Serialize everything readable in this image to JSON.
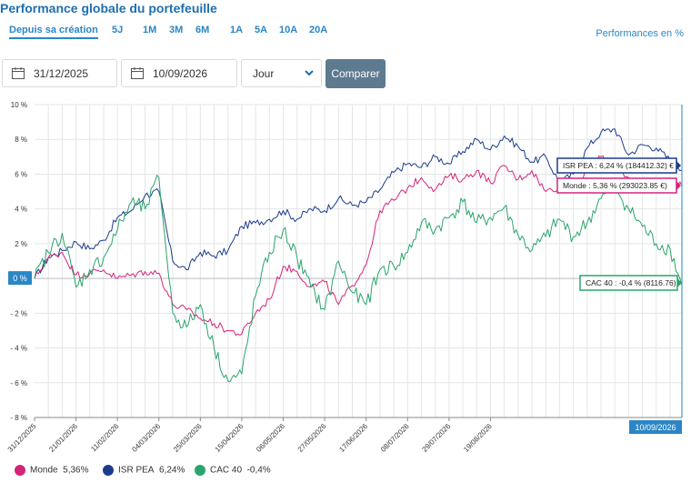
{
  "header": {
    "title": "Performance globale du portefeuille",
    "unit_label": "Performances en %"
  },
  "periods": [
    {
      "label": "Depuis sa création",
      "active": true
    },
    {
      "label": "5J",
      "active": false
    },
    {
      "label": "1M",
      "active": false
    },
    {
      "label": "3M",
      "active": false
    },
    {
      "label": "6M",
      "active": false
    },
    {
      "label": "1A",
      "active": false
    },
    {
      "label": "5A",
      "active": false
    },
    {
      "label": "10A",
      "active": false
    },
    {
      "label": "20A",
      "active": false
    }
  ],
  "controls": {
    "start_date": "31/12/2025",
    "end_date": "10/09/2026",
    "granularity": "Jour",
    "compare_label": "Comparer"
  },
  "colors": {
    "isr": "#1b3c8c",
    "monde": "#d6237a",
    "cac": "#2aa56b",
    "accent": "#2b86c5"
  },
  "chart_data": {
    "type": "line",
    "ylim": [
      -8,
      10
    ],
    "y_ticks": [
      10,
      8,
      6,
      4,
      2,
      0,
      -2,
      -4,
      -6,
      -8
    ],
    "y_tick_labels": [
      "10 %",
      "8 %",
      "6 %",
      "4 %",
      "2 %",
      "",
      "- 2 %",
      "- 4 %",
      "- 6 %",
      "- 8 %"
    ],
    "x_tick_labels": [
      "31/12/2025",
      "21/01/2026",
      "11/02/2026",
      "04/03/2026",
      "25/03/2026",
      "15/04/2026",
      "06/05/2026",
      "27/05/2026",
      "17/06/2026",
      "08/07/2026",
      "29/07/2026",
      "19/08/2026"
    ],
    "x_start": "31/12/2025",
    "x_end": "10/09/2026",
    "zero_label": "0 %",
    "cursor_date": "10/09/2026",
    "series": [
      {
        "name": "ISR PEA",
        "key": "isr",
        "legend_value": "6,24%",
        "tooltip": "ISR PEA : 6,24 % (184412.32) €",
        "points": [
          [
            0,
            0
          ],
          [
            7,
            1.2
          ],
          [
            14,
            1.6
          ],
          [
            21,
            2.1
          ],
          [
            28,
            1.7
          ],
          [
            35,
            2.2
          ],
          [
            42,
            3.5
          ],
          [
            49,
            3.9
          ],
          [
            56,
            4.8
          ],
          [
            63,
            5.0
          ],
          [
            70,
            1.0
          ],
          [
            77,
            0.5
          ],
          [
            84,
            1.5
          ],
          [
            91,
            1.3
          ],
          [
            98,
            1.6
          ],
          [
            105,
            3.0
          ],
          [
            112,
            3.2
          ],
          [
            119,
            3.4
          ],
          [
            126,
            3.9
          ],
          [
            133,
            3.4
          ],
          [
            140,
            4.0
          ],
          [
            147,
            3.9
          ],
          [
            154,
            4.6
          ],
          [
            161,
            4.2
          ],
          [
            168,
            4.4
          ],
          [
            175,
            5.1
          ],
          [
            182,
            6.1
          ],
          [
            189,
            6.6
          ],
          [
            196,
            6.4
          ],
          [
            203,
            7.0
          ],
          [
            210,
            6.6
          ],
          [
            217,
            7.3
          ],
          [
            224,
            8.0
          ],
          [
            231,
            7.4
          ],
          [
            238,
            8.2
          ],
          [
            245,
            7.6
          ],
          [
            252,
            6.7
          ],
          [
            259,
            7.0
          ],
          [
            266,
            5.5
          ],
          [
            273,
            6.0
          ],
          [
            280,
            7.5
          ],
          [
            287,
            8.4
          ],
          [
            294,
            8.6
          ],
          [
            301,
            7.1
          ],
          [
            308,
            7.7
          ],
          [
            315,
            7.5
          ],
          [
            322,
            6.8
          ],
          [
            328,
            6.24
          ]
        ]
      },
      {
        "name": "Monde",
        "key": "monde",
        "legend_value": "5,36%",
        "tooltip": "Monde : 5,36 % (293023.85 €)",
        "points": [
          [
            0,
            0
          ],
          [
            7,
            1.2
          ],
          [
            14,
            1.5
          ],
          [
            21,
            0.2
          ],
          [
            28,
            0.3
          ],
          [
            35,
            0.5
          ],
          [
            42,
            0.0
          ],
          [
            49,
            0.2
          ],
          [
            56,
            0.4
          ],
          [
            63,
            0.3
          ],
          [
            70,
            -1.5
          ],
          [
            77,
            -1.8
          ],
          [
            84,
            -2.3
          ],
          [
            91,
            -2.6
          ],
          [
            98,
            -3.0
          ],
          [
            105,
            -3.2
          ],
          [
            112,
            -2.0
          ],
          [
            119,
            -1.2
          ],
          [
            126,
            0.7
          ],
          [
            133,
            0.4
          ],
          [
            140,
            -0.5
          ],
          [
            147,
            -0.2
          ],
          [
            154,
            -1.5
          ],
          [
            161,
            -0.4
          ],
          [
            168,
            0.8
          ],
          [
            175,
            3.9
          ],
          [
            182,
            4.5
          ],
          [
            189,
            5.2
          ],
          [
            196,
            5.8
          ],
          [
            203,
            5.1
          ],
          [
            210,
            5.9
          ],
          [
            217,
            5.7
          ],
          [
            224,
            6.2
          ],
          [
            231,
            5.5
          ],
          [
            238,
            6.5
          ],
          [
            245,
            5.7
          ],
          [
            252,
            6.2
          ],
          [
            259,
            5.0
          ],
          [
            266,
            5.3
          ],
          [
            273,
            5.1
          ],
          [
            280,
            6.1
          ],
          [
            287,
            7.0
          ],
          [
            294,
            6.5
          ],
          [
            301,
            5.8
          ],
          [
            308,
            5.6
          ],
          [
            315,
            5.3
          ],
          [
            322,
            5.5
          ],
          [
            328,
            5.36
          ]
        ]
      },
      {
        "name": "CAC 40",
        "key": "cac",
        "legend_value": "-0,4%",
        "tooltip": "CAC 40 : -0,4 % (8116.76)",
        "points": [
          [
            0,
            0
          ],
          [
            7,
            1.5
          ],
          [
            14,
            2.6
          ],
          [
            21,
            -0.5
          ],
          [
            28,
            0.5
          ],
          [
            35,
            1.2
          ],
          [
            42,
            2.8
          ],
          [
            49,
            4.4
          ],
          [
            56,
            4.0
          ],
          [
            63,
            5.8
          ],
          [
            70,
            -2.0
          ],
          [
            77,
            -2.8
          ],
          [
            84,
            -1.5
          ],
          [
            91,
            -4.0
          ],
          [
            98,
            -5.9
          ],
          [
            105,
            -5.5
          ],
          [
            112,
            -1.0
          ],
          [
            119,
            1.5
          ],
          [
            126,
            2.8
          ],
          [
            133,
            1.2
          ],
          [
            140,
            -0.5
          ],
          [
            147,
            -1.8
          ],
          [
            154,
            1.0
          ],
          [
            161,
            -0.8
          ],
          [
            168,
            -1.5
          ],
          [
            175,
            0.5
          ],
          [
            182,
            0.7
          ],
          [
            189,
            1.5
          ],
          [
            196,
            3.2
          ],
          [
            203,
            2.8
          ],
          [
            210,
            3.5
          ],
          [
            217,
            4.4
          ],
          [
            224,
            3.2
          ],
          [
            231,
            3.5
          ],
          [
            238,
            4.1
          ],
          [
            245,
            2.5
          ],
          [
            252,
            1.6
          ],
          [
            259,
            2.4
          ],
          [
            266,
            3.4
          ],
          [
            273,
            2.4
          ],
          [
            280,
            3.2
          ],
          [
            287,
            4.6
          ],
          [
            294,
            5.3
          ],
          [
            301,
            4.0
          ],
          [
            308,
            3.0
          ],
          [
            315,
            2.0
          ],
          [
            322,
            1.7
          ],
          [
            328,
            -0.4
          ]
        ]
      }
    ]
  }
}
